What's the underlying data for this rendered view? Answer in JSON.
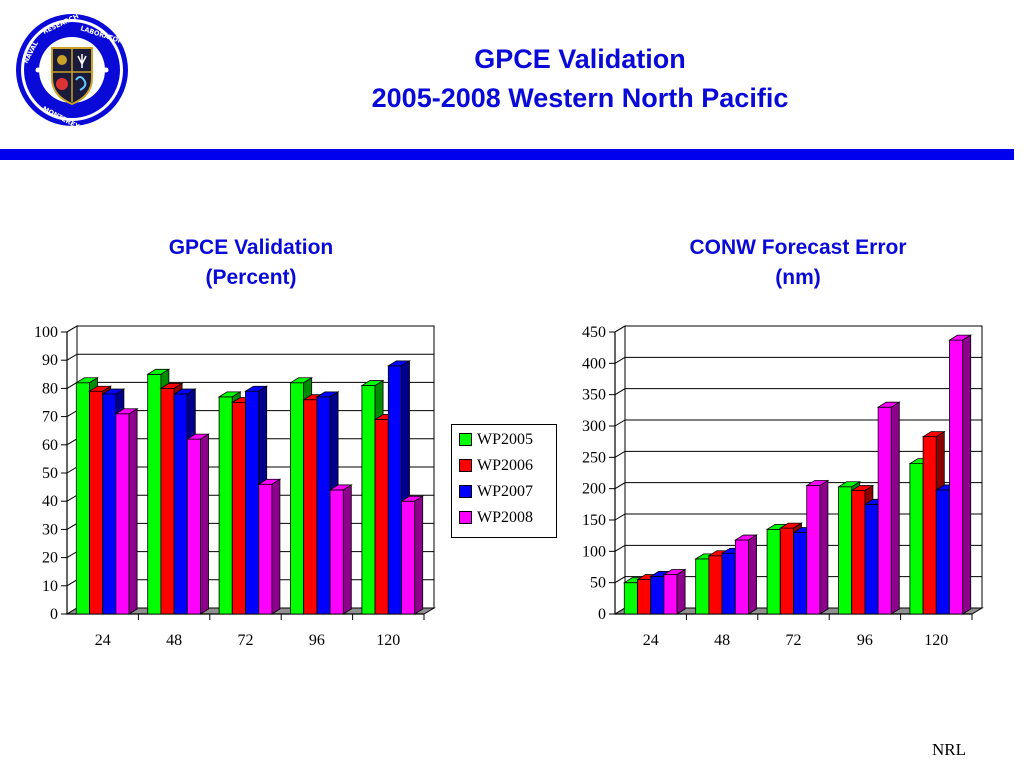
{
  "header": {
    "title_line1": "GPCE Validation",
    "title_line2": "2005-2008 Western North Pacific",
    "rule_color": "#0000ee",
    "logo": {
      "icon": "naval-research-laboratory-seal-icon",
      "text_top": "NAVAL RESEARCH LABORATORY",
      "text_bottom": "MONTEREY, CA"
    }
  },
  "legend": {
    "items": [
      {
        "label": "WP2005",
        "color": "#00ff00"
      },
      {
        "label": "WP2006",
        "color": "#ff0000"
      },
      {
        "label": "WP2007",
        "color": "#0000ff"
      },
      {
        "label": "WP2008",
        "color": "#ff00ff"
      }
    ]
  },
  "footer": {
    "text": "NRL"
  },
  "chart_data": [
    {
      "type": "bar",
      "style": "3d-clustered",
      "title_line1": "GPCE Validation",
      "title_line2": "(Percent)",
      "categories": [
        "24",
        "48",
        "72",
        "96",
        "120"
      ],
      "ylim": [
        0,
        100
      ],
      "yticks": [
        0,
        10,
        20,
        30,
        40,
        50,
        60,
        70,
        80,
        90,
        100
      ],
      "grid": true,
      "series": [
        {
          "name": "WP2005",
          "color": "#00ff00",
          "values": [
            82,
            85,
            77,
            82,
            81
          ]
        },
        {
          "name": "WP2006",
          "color": "#ff0000",
          "values": [
            79,
            80,
            75,
            76,
            69
          ]
        },
        {
          "name": "WP2007",
          "color": "#0000ff",
          "values": [
            78,
            78,
            79,
            77,
            88
          ]
        },
        {
          "name": "WP2008",
          "color": "#ff00ff",
          "values": [
            71,
            62,
            46,
            44,
            40
          ]
        }
      ]
    },
    {
      "type": "bar",
      "style": "3d-clustered",
      "title_line1": "CONW Forecast Error",
      "title_line2": "(nm)",
      "categories": [
        "24",
        "48",
        "72",
        "96",
        "120"
      ],
      "ylim": [
        0,
        450
      ],
      "yticks": [
        0,
        50,
        100,
        150,
        200,
        250,
        300,
        350,
        400,
        450
      ],
      "grid": true,
      "series": [
        {
          "name": "WP2005",
          "color": "#00ff00",
          "values": [
            50,
            88,
            135,
            203,
            240
          ]
        },
        {
          "name": "WP2006",
          "color": "#ff0000",
          "values": [
            55,
            93,
            137,
            197,
            283
          ]
        },
        {
          "name": "WP2007",
          "color": "#0000ff",
          "values": [
            60,
            97,
            130,
            175,
            198
          ]
        },
        {
          "name": "WP2008",
          "color": "#ff00ff",
          "values": [
            63,
            118,
            205,
            330,
            437
          ]
        }
      ]
    }
  ]
}
